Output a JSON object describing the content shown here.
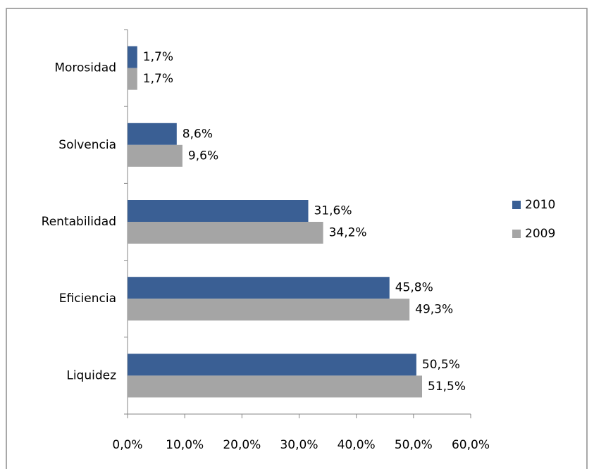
{
  "chart_data": {
    "type": "hbar",
    "categories": [
      "Morosidad",
      "Solvencia",
      "Rentabilidad",
      "Eficiencia",
      "Liquidez"
    ],
    "series": [
      {
        "name": "2010",
        "color": "#3a5f94",
        "values": [
          1.7,
          8.6,
          31.6,
          45.8,
          50.5
        ],
        "value_labels": [
          "1,7%",
          "8,6%",
          "31,6%",
          "45,8%",
          "50,5%"
        ]
      },
      {
        "name": "2009",
        "color": "#a5a5a5",
        "values": [
          1.7,
          9.6,
          34.2,
          49.3,
          51.5
        ],
        "value_labels": [
          "1,7%",
          "9,6%",
          "34,2%",
          "49,3%",
          "51,5%"
        ]
      }
    ],
    "xlim": [
      0,
      60
    ],
    "xticks": [
      {
        "value": 0,
        "label": "0,0%"
      },
      {
        "value": 10,
        "label": "10,0%"
      },
      {
        "value": 20,
        "label": "20,0%"
      },
      {
        "value": 30,
        "label": "30,0%"
      },
      {
        "value": 40,
        "label": "40,0%"
      },
      {
        "value": 50,
        "label": "50,0%"
      },
      {
        "value": 60,
        "label": "60,0%"
      }
    ],
    "legend": "right",
    "grid": false
  }
}
